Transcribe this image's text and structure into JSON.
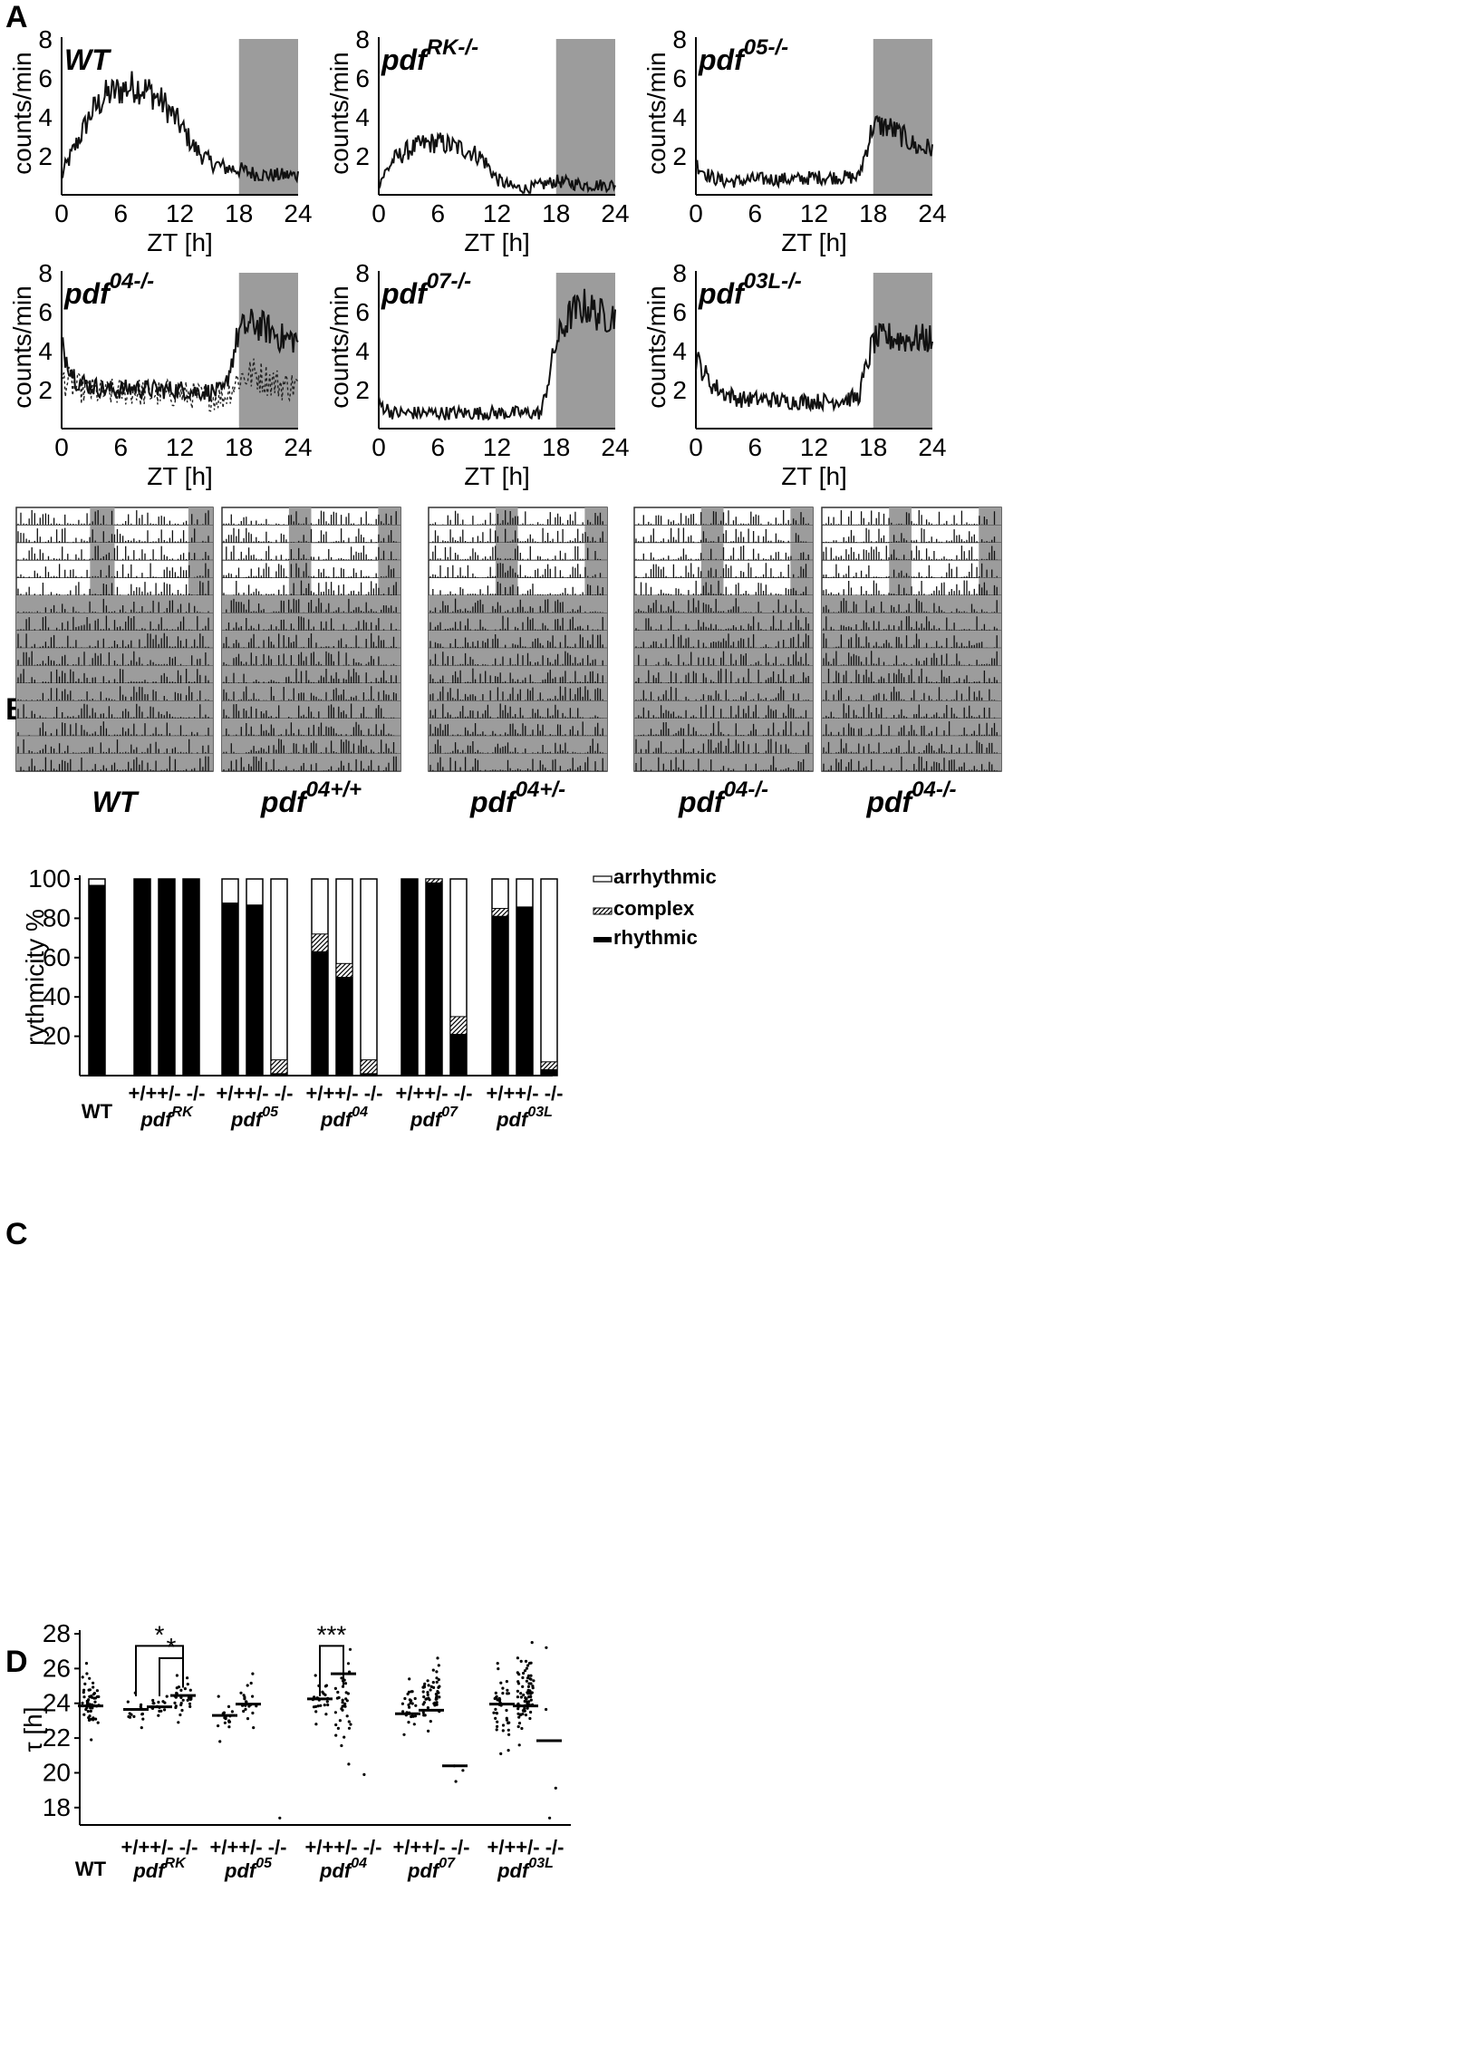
{
  "panels": {
    "A": "A",
    "B": "B",
    "C": "C",
    "D": "D"
  },
  "colors": {
    "dark_shading": "#9c9c9c",
    "line": "#111111",
    "bar": "#000000"
  },
  "chart_data": [
    {
      "type": "line",
      "panel": "A",
      "charts": [
        {
          "genotype": "WT",
          "sup": "",
          "dotted": false,
          "values": [
            1.0,
            2.6,
            4.2,
            5.1,
            5.4,
            5.6,
            5.3,
            4.6,
            3.6,
            2.4,
            1.7,
            1.4,
            1.3,
            1.1,
            1.0,
            1.0
          ]
        },
        {
          "genotype": "pdf",
          "sup": "RK-/-",
          "dotted": false,
          "values": [
            0.6,
            1.8,
            2.3,
            2.6,
            2.7,
            2.5,
            2.3,
            1.9,
            0.8,
            0.4,
            0.3,
            0.5,
            0.7,
            0.6,
            0.5,
            0.5
          ]
        },
        {
          "genotype": "pdf",
          "sup": "05-/-",
          "dotted": false,
          "values": [
            1.6,
            0.9,
            0.7,
            0.7,
            0.8,
            0.8,
            0.8,
            0.8,
            0.9,
            0.9,
            0.9,
            0.9,
            3.6,
            3.5,
            3.0,
            2.4
          ]
        },
        {
          "genotype": "pdf",
          "sup": "04-/-",
          "dotted": true,
          "values": [
            4.2,
            2.5,
            2.2,
            2.0,
            2.0,
            2.1,
            2.0,
            2.0,
            2.0,
            1.9,
            1.9,
            1.9,
            5.0,
            5.4,
            5.1,
            4.6
          ],
          "dotted_values": [
            2.6,
            2.1,
            1.9,
            1.8,
            1.9,
            1.9,
            1.8,
            1.8,
            1.8,
            1.7,
            1.6,
            1.6,
            2.6,
            2.8,
            2.5,
            2.2
          ]
        },
        {
          "genotype": "pdf",
          "sup": "07-/-",
          "dotted": false,
          "values": [
            1.3,
            0.8,
            0.8,
            0.8,
            0.8,
            0.8,
            0.8,
            0.8,
            0.8,
            0.8,
            0.8,
            0.8,
            4.4,
            5.9,
            6.3,
            5.8
          ]
        },
        {
          "genotype": "pdf",
          "sup": "03L-/-",
          "dotted": false,
          "values": [
            3.6,
            2.3,
            1.8,
            1.5,
            1.5,
            1.5,
            1.4,
            1.4,
            1.4,
            1.4,
            1.5,
            1.6,
            4.5,
            4.7,
            4.6,
            4.6
          ]
        }
      ],
      "ylabel": "counts/min",
      "xlabel": "ZT [h]",
      "xticks": [
        "0",
        "6",
        "12",
        "18",
        "24"
      ],
      "yticks": [
        "2",
        "4",
        "6",
        "8"
      ],
      "ylim": [
        0,
        8
      ],
      "xlim": [
        0,
        24
      ],
      "dark_phase": [
        18,
        24
      ]
    },
    {
      "type": "heatmap",
      "panel": "B",
      "subtype": "actogram",
      "labels": [
        {
          "genotype": "WT",
          "sup": ""
        },
        {
          "genotype": "pdf",
          "sup": "04+/+"
        },
        {
          "genotype": "pdf",
          "sup": "04+/-"
        },
        {
          "genotype": "pdf",
          "sup": "04-/-"
        },
        {
          "genotype": "pdf",
          "sup": "04-/-"
        }
      ],
      "days_light_dark": 5,
      "days_constant_dark": 10
    },
    {
      "type": "bar",
      "panel": "C",
      "ylabel": "rythmicity %",
      "yticks": [
        "20",
        "40",
        "60",
        "80",
        "100"
      ],
      "ylim": [
        0,
        100
      ],
      "legend": [
        "arrhythmic",
        "complex",
        "rhythmic"
      ],
      "groups": [
        {
          "label": "WT",
          "sup": "",
          "italic": false,
          "sublabels": "",
          "bars": [
            {
              "rhythmic": 97,
              "complex": 0
            }
          ]
        },
        {
          "label": "pdf",
          "sup": "RK",
          "italic": true,
          "sublabels": "+/++/- -/-",
          "bars": [
            {
              "rhythmic": 100,
              "complex": 0
            },
            {
              "rhythmic": 100,
              "complex": 0
            },
            {
              "rhythmic": 100,
              "complex": 0
            }
          ]
        },
        {
          "label": "pdf",
          "sup": "05",
          "italic": true,
          "sublabels": "+/++/- -/-",
          "bars": [
            {
              "rhythmic": 88,
              "complex": 0
            },
            {
              "rhythmic": 87,
              "complex": 0
            },
            {
              "rhythmic": 1,
              "complex": 7
            }
          ]
        },
        {
          "label": "pdf",
          "sup": "04",
          "italic": true,
          "sublabels": "+/++/- -/-",
          "bars": [
            {
              "rhythmic": 63,
              "complex": 9
            },
            {
              "rhythmic": 50,
              "complex": 7
            },
            {
              "rhythmic": 1,
              "complex": 7
            }
          ]
        },
        {
          "label": "pdf",
          "sup": "07",
          "italic": true,
          "sublabels": "+/++/- -/-",
          "bars": [
            {
              "rhythmic": 100,
              "complex": 0
            },
            {
              "rhythmic": 98,
              "complex": 2
            },
            {
              "rhythmic": 21,
              "complex": 9
            }
          ]
        },
        {
          "label": "pdf",
          "sup": "03L",
          "italic": true,
          "sublabels": "+/++/- -/-",
          "bars": [
            {
              "rhythmic": 81,
              "complex": 4
            },
            {
              "rhythmic": 86,
              "complex": 0
            },
            {
              "rhythmic": 3,
              "complex": 4
            }
          ]
        }
      ]
    },
    {
      "type": "scatter",
      "panel": "D",
      "ylabel": "τ [h]",
      "yticks": [
        "18",
        "20",
        "22",
        "24",
        "26",
        "28"
      ],
      "ylim": [
        17,
        28
      ],
      "groups": [
        {
          "label": "WT",
          "sup": "",
          "italic": false,
          "sublabels": "",
          "series": [
            {
              "median": 23.85,
              "n": 55,
              "min": 21.9,
              "max": 26.3
            }
          ]
        },
        {
          "label": "pdf",
          "sup": "RK",
          "italic": true,
          "sublabels": "+/++/- -/-",
          "series": [
            {
              "median": 23.65,
              "n": 14,
              "min": 22.6,
              "max": 24.6
            },
            {
              "median": 23.8,
              "n": 16,
              "min": 23.3,
              "max": 24.4
            },
            {
              "median": 24.45,
              "n": 30,
              "min": 22.9,
              "max": 25.6
            }
          ]
        },
        {
          "label": "pdf",
          "sup": "05",
          "italic": true,
          "sublabels": "+/++/- -/-",
          "series": [
            {
              "median": 23.3,
              "n": 16,
              "min": 21.8,
              "max": 24.4
            },
            {
              "median": 23.95,
              "n": 20,
              "min": 22.6,
              "max": 25.7
            },
            {
              "median": null,
              "n": 1,
              "min": 17.4,
              "max": 17.4
            }
          ]
        },
        {
          "label": "pdf",
          "sup": "04",
          "italic": true,
          "sublabels": "+/++/- -/-",
          "series": [
            {
              "median": 24.25,
              "n": 24,
              "min": 22.8,
              "max": 25.6
            },
            {
              "median": 25.7,
              "n": 36,
              "min": 20.5,
              "max": 27.1
            },
            {
              "median": null,
              "n": 1,
              "min": 19.9,
              "max": 19.9
            }
          ]
        },
        {
          "label": "pdf",
          "sup": "07",
          "italic": true,
          "sublabels": "+/++/- -/-",
          "series": [
            {
              "median": 23.4,
              "n": 26,
              "min": 22.2,
              "max": 25.4
            },
            {
              "median": 23.6,
              "n": 50,
              "min": 22.4,
              "max": 26.6
            },
            {
              "median": 20.4,
              "n": 3,
              "min": 19.5,
              "max": 20.4
            }
          ]
        },
        {
          "label": "pdf",
          "sup": "03L",
          "italic": true,
          "sublabels": "+/++/- -/-",
          "series": [
            {
              "median": 23.95,
              "n": 40,
              "min": 21.1,
              "max": 26.3
            },
            {
              "median": 23.85,
              "n": 80,
              "min": 21.6,
              "max": 27.5
            },
            {
              "median": 21.85,
              "n": 4,
              "min": 17.4,
              "max": 27.2
            }
          ]
        }
      ],
      "significance": [
        "*",
        "*",
        "***"
      ]
    }
  ]
}
